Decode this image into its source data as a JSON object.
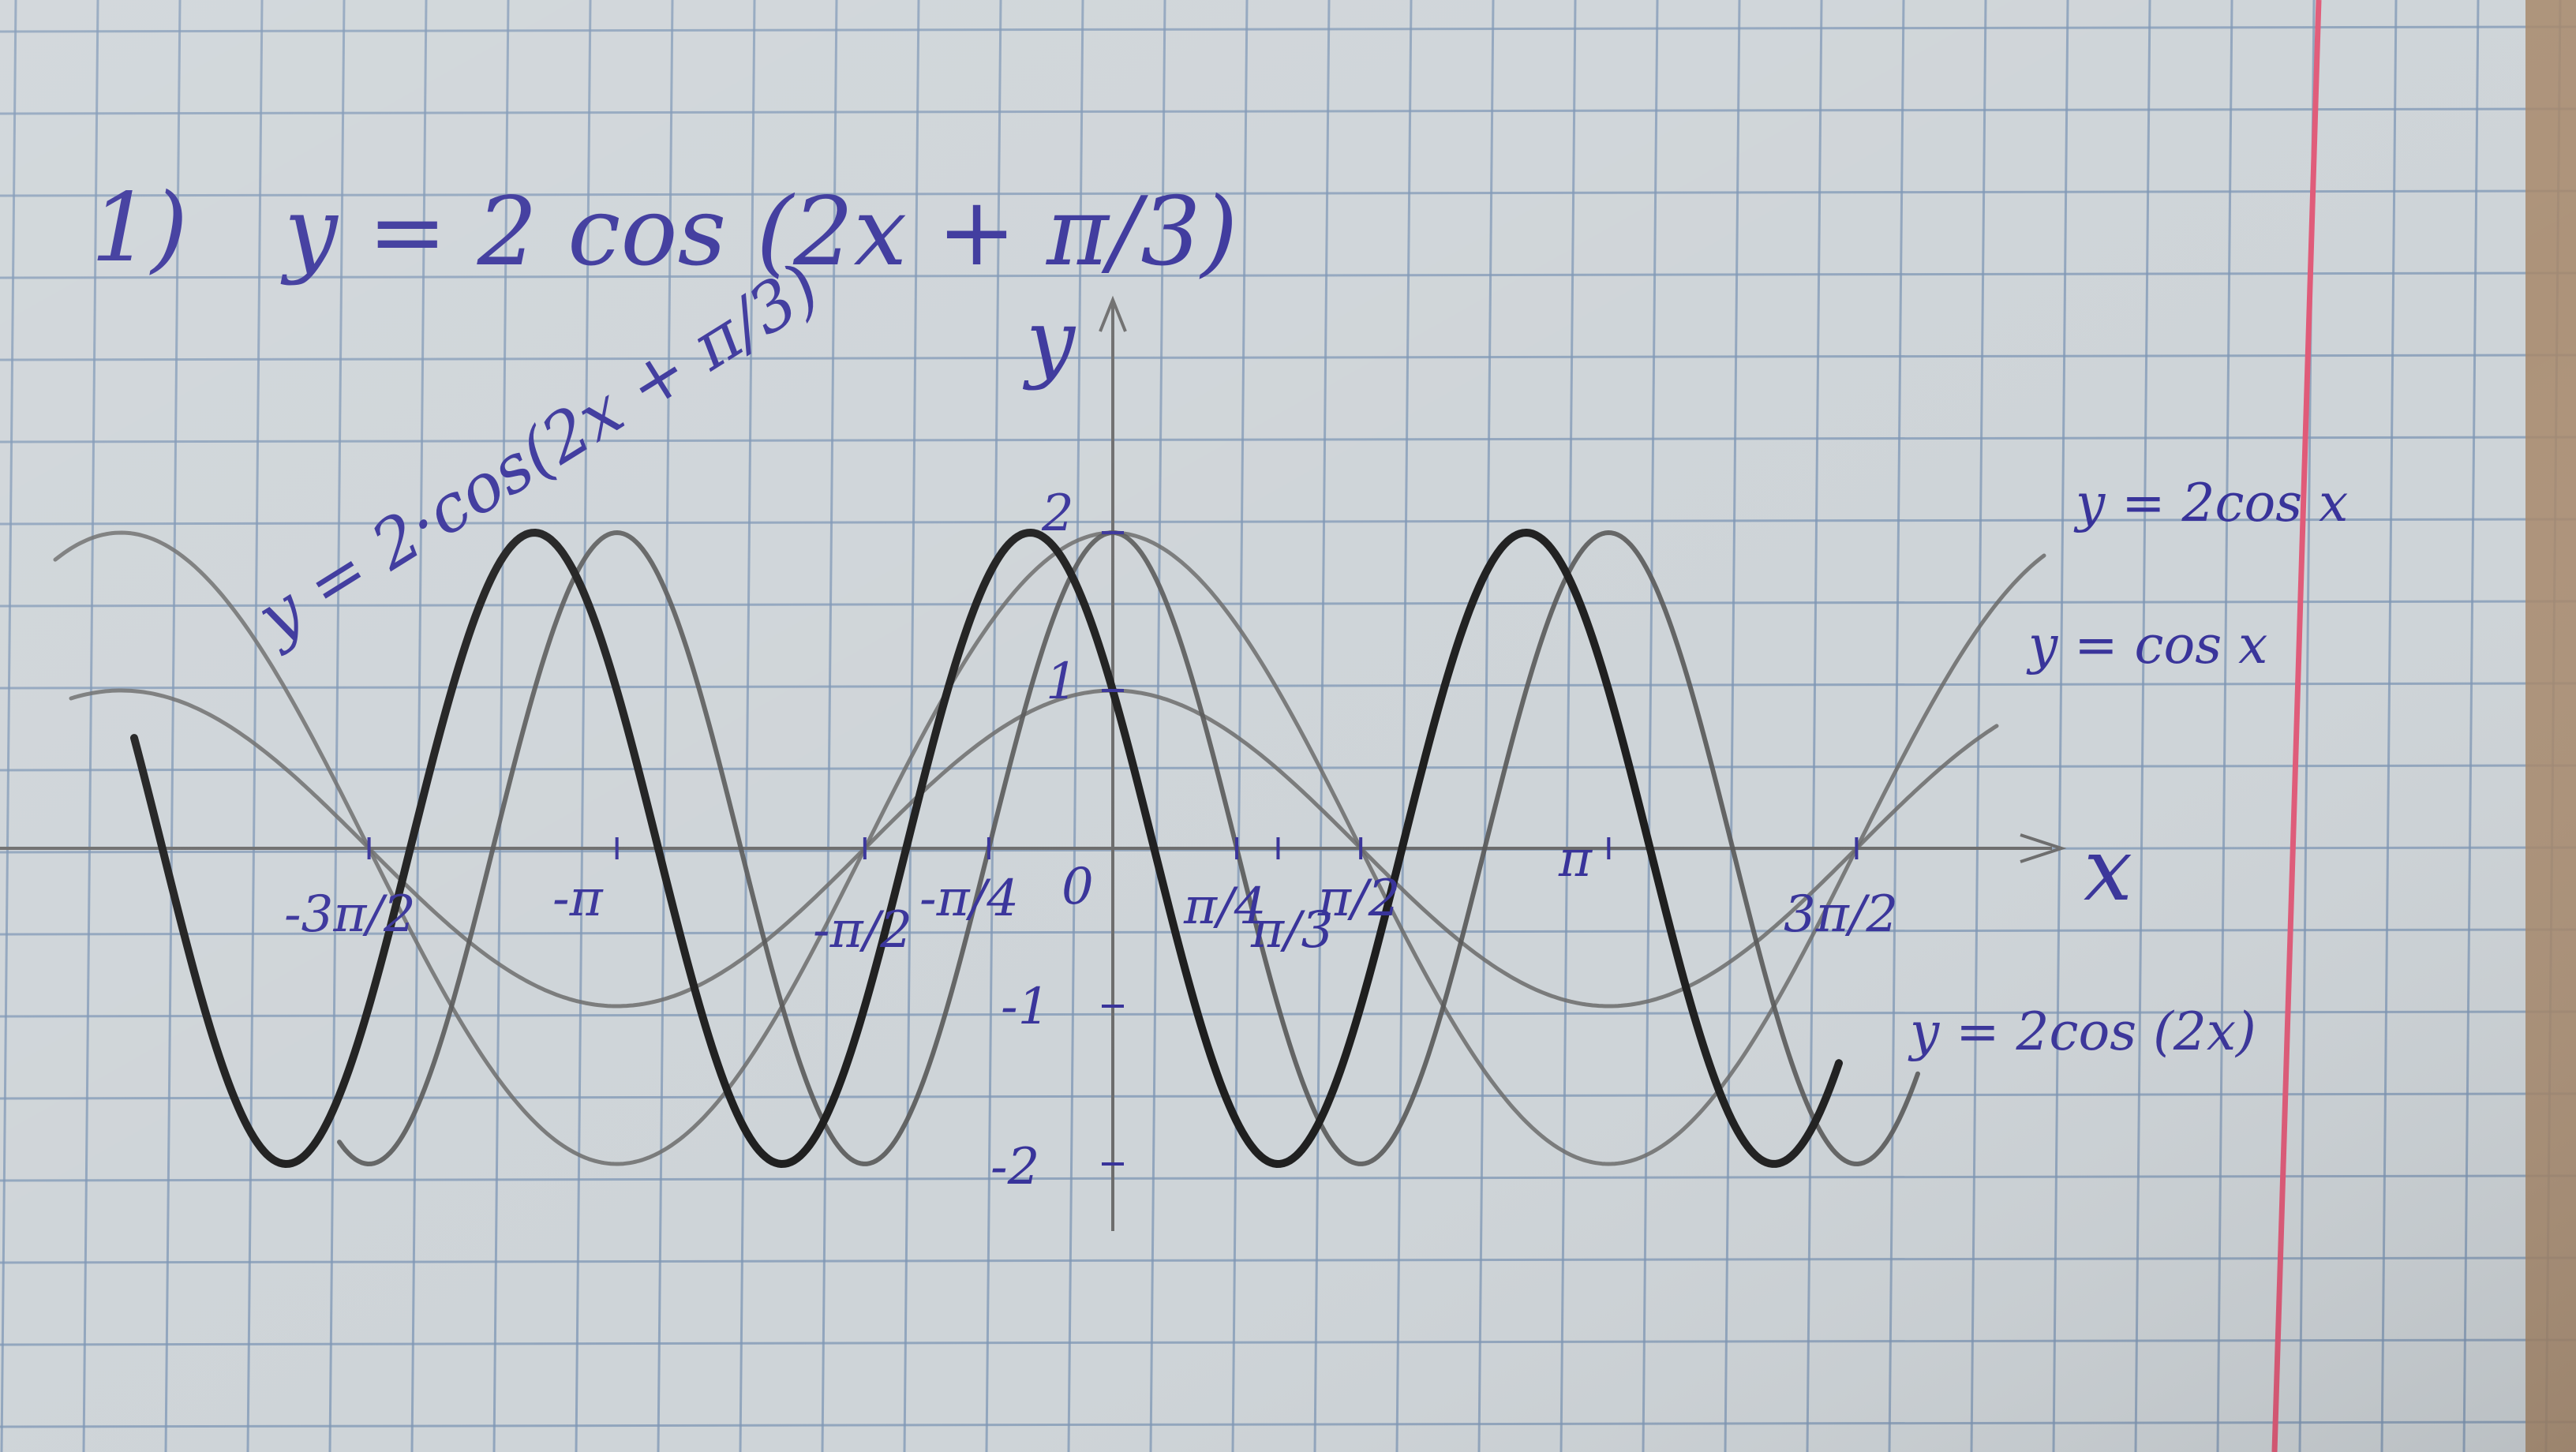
{
  "problem": {
    "number": "1)",
    "equation": "y = 2 cos (2x + π/3)"
  },
  "axes": {
    "y_name": "y",
    "x_name": "x",
    "y_ticks": [
      {
        "value": 2,
        "label": "2"
      },
      {
        "value": 1,
        "label": "1"
      },
      {
        "value": -1,
        "label": "-1"
      },
      {
        "value": -2,
        "label": "-2"
      }
    ],
    "origin_label": "0",
    "x_ticks": [
      {
        "value": -4.712,
        "label": "-3π/2"
      },
      {
        "value": -3.1416,
        "label": "-π"
      },
      {
        "value": -1.5708,
        "label": "-π/2"
      },
      {
        "value": -0.7854,
        "label": "-π/4"
      },
      {
        "value": 0.7854,
        "label": "π/4"
      },
      {
        "value": 1.0472,
        "label": "π/3"
      },
      {
        "value": 1.5708,
        "label": "π/2"
      },
      {
        "value": 3.1416,
        "label": "π"
      },
      {
        "value": 4.712,
        "label": "3π/2"
      }
    ]
  },
  "curve_labels": {
    "main": "y = 2·cos(2x + π/3)",
    "two_cos_x": "y = 2cos x",
    "cos_x": "y = cos x",
    "two_cos_2x": "y = 2cos (2x)"
  },
  "colors": {
    "paper": "#ced4d8",
    "grid": "#7d96b4",
    "margin_line": "#e05a78",
    "ink": "#38339a",
    "pencil": "#5a5a5a",
    "pencil_dark": "#1e1e1e"
  }
}
